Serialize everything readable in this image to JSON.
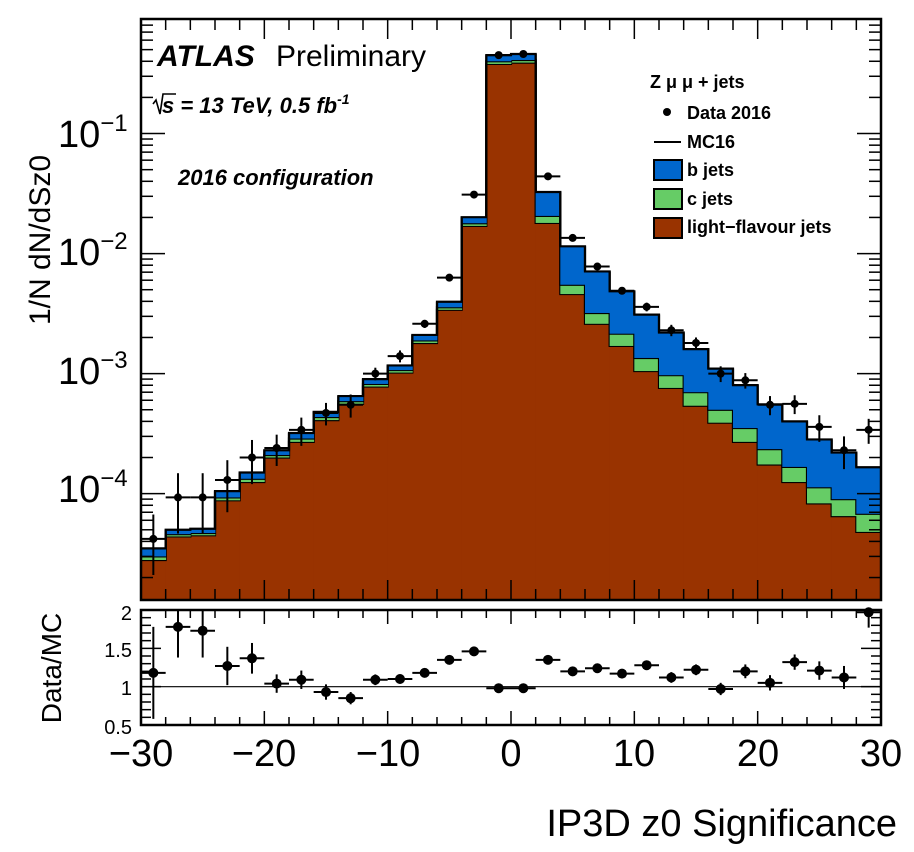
{
  "chart_data": [
    {
      "type": "histogram",
      "panel": "main",
      "x_edges": [
        -30,
        -28,
        -26,
        -24,
        -22,
        -20,
        -18,
        -16,
        -14,
        -12,
        -10,
        -8,
        -6,
        -4,
        -2,
        0,
        2,
        4,
        6,
        8,
        10,
        12,
        14,
        16,
        18,
        20,
        22,
        24,
        26,
        28,
        30
      ],
      "xlim": [
        -30,
        30
      ],
      "ylabel": "1/N dN/dSz0",
      "yscale": "log",
      "ylim": [
        1.3e-05,
        0.9
      ],
      "ytick_labels": [
        {
          "base": "10",
          "exp": "−1",
          "value": 0.1
        },
        {
          "base": "10",
          "exp": "−2",
          "value": 0.01
        },
        {
          "base": "10",
          "exp": "−3",
          "value": 0.001
        },
        {
          "base": "10",
          "exp": "−4",
          "value": 0.0001
        }
      ],
      "stack": [
        {
          "name": "light−flavour jets",
          "color": "#993300",
          "values": [
            2.8e-05,
            4.4e-05,
            4.5e-05,
            8.8e-05,
            0.000125,
            0.0002,
            0.00027,
            0.00041,
            0.00056,
            0.00078,
            0.00102,
            0.0018,
            0.0034,
            0.017,
            0.38,
            0.39,
            0.018,
            0.0046,
            0.0026,
            0.0017,
            0.00105,
            0.00076,
            0.00054,
            0.00039,
            0.00027,
            0.000175,
            0.000125,
            8.3e-05,
            6.5e-05,
            4.8e-05
          ]
        },
        {
          "name": "c jets",
          "color": "#66cc66",
          "values": [
            2e-06,
            2e-06,
            2e-06,
            5e-06,
            8e-06,
            1e-05,
            1.8e-05,
            2.5e-05,
            3e-05,
            4e-05,
            5e-05,
            9e-05,
            0.00017,
            0.0009,
            0.02,
            0.02,
            0.0026,
            0.0009,
            0.0006,
            0.00045,
            0.0003,
            0.00021,
            0.00016,
            0.00011,
            8.2e-05,
            6e-05,
            4.2e-05,
            3e-05,
            2.5e-05,
            2e-05
          ]
        },
        {
          "name": "b jets",
          "color": "#0066cc",
          "values": [
            5e-06,
            4e-06,
            4e-06,
            1.2e-05,
            1.7e-05,
            2e-05,
            3.2e-05,
            4.5e-05,
            6e-05,
            8e-05,
            0.0001,
            0.00021,
            0.0004,
            0.0022,
            0.05,
            0.05,
            0.012,
            0.006,
            0.0039,
            0.0027,
            0.00175,
            0.00123,
            0.0009,
            0.0006,
            0.00045,
            0.00032,
            0.000233,
            0.00017,
            0.00013,
            9.8e-05
          ]
        }
      ],
      "data_points": {
        "name": "Data 2016",
        "x": [
          -29,
          -27,
          -25,
          -23,
          -21,
          -19,
          -17,
          -15,
          -13,
          -11,
          -9,
          -7,
          -5,
          -3,
          -1,
          1,
          3,
          5,
          7,
          9,
          11,
          13,
          15,
          17,
          19,
          21,
          23,
          25,
          27,
          29
        ],
        "y": [
          4.2e-05,
          9.3e-05,
          9.3e-05,
          0.00013,
          0.0002,
          0.00024,
          0.00034,
          0.00047,
          0.00055,
          0.001,
          0.0014,
          0.0026,
          0.0063,
          0.031,
          0.45,
          0.46,
          0.044,
          0.0135,
          0.0078,
          0.0049,
          0.0036,
          0.0023,
          0.0018,
          0.001,
          0.00088,
          0.00055,
          0.00056,
          0.00036,
          0.00023,
          0.00034
        ],
        "yerr_up": [
          2.5e-05,
          5.5e-05,
          5.5e-05,
          6e-05,
          8e-05,
          7e-05,
          9e-05,
          0.0001,
          0.00012,
          0.00012,
          0.00016,
          0.0002,
          0.0004,
          0.0012,
          0.01,
          0.01,
          0.0016,
          0.0007,
          0.0004,
          0.0003,
          0.0003,
          0.00025,
          0.0002,
          0.00015,
          0.00013,
          0.0001,
          0.0001,
          9e-05,
          7e-05,
          8e-05
        ]
      },
      "annotations": {
        "experiment": "ATLAS",
        "status": "Preliminary",
        "energy": "s = 13 TeV, 0.5 fb",
        "energy_sup": "-1",
        "configuration": "2016 configuration"
      },
      "legend": {
        "placement": "top-right",
        "header": "Z μ μ  + jets",
        "entries": [
          {
            "label": "Data 2016",
            "kind": "marker"
          },
          {
            "label": "MC16",
            "kind": "line"
          },
          {
            "label": "b jets",
            "kind": "box",
            "color": "#0066cc"
          },
          {
            "label": "c jets",
            "kind": "box",
            "color": "#66cc66"
          },
          {
            "label": "light−flavour jets",
            "kind": "box",
            "color": "#993300"
          }
        ]
      }
    },
    {
      "type": "scatter",
      "panel": "ratio",
      "xlabel": "IP3D z0 Significance",
      "ylabel": "Data/MC",
      "xlim": [
        -30,
        30
      ],
      "ylim": [
        0.5,
        2
      ],
      "xtick_labels": [
        "−30",
        "−20",
        "−10",
        "0",
        "10",
        "20",
        "30"
      ],
      "xtick_values": [
        -30,
        -20,
        -10,
        0,
        10,
        20,
        30
      ],
      "ytick_labels": [
        "0.5",
        "1",
        "1.5",
        "2"
      ],
      "ytick_values": [
        0.5,
        1,
        1.5,
        2
      ],
      "reference_line": 1,
      "x": [
        -29,
        -27,
        -25,
        -23,
        -21,
        -19,
        -17,
        -15,
        -13,
        -11,
        -9,
        -7,
        -5,
        -3,
        -1,
        1,
        3,
        5,
        7,
        9,
        11,
        13,
        15,
        17,
        19,
        21,
        23,
        25,
        27,
        29
      ],
      "y": [
        1.18,
        1.78,
        1.73,
        1.27,
        1.37,
        1.04,
        1.09,
        0.93,
        0.85,
        1.09,
        1.1,
        1.18,
        1.35,
        1.46,
        0.98,
        0.98,
        1.35,
        1.2,
        1.24,
        1.17,
        1.28,
        1.12,
        1.22,
        0.97,
        1.2,
        1.05,
        1.32,
        1.21,
        1.12,
        1.97
      ],
      "yerr": [
        0.6,
        0.4,
        0.35,
        0.25,
        0.2,
        0.12,
        0.12,
        0.1,
        0.08,
        0.07,
        0.06,
        0.04,
        0.03,
        0.02,
        0.01,
        0.01,
        0.03,
        0.04,
        0.04,
        0.05,
        0.06,
        0.07,
        0.07,
        0.08,
        0.09,
        0.1,
        0.1,
        0.12,
        0.15,
        0.2
      ]
    }
  ]
}
